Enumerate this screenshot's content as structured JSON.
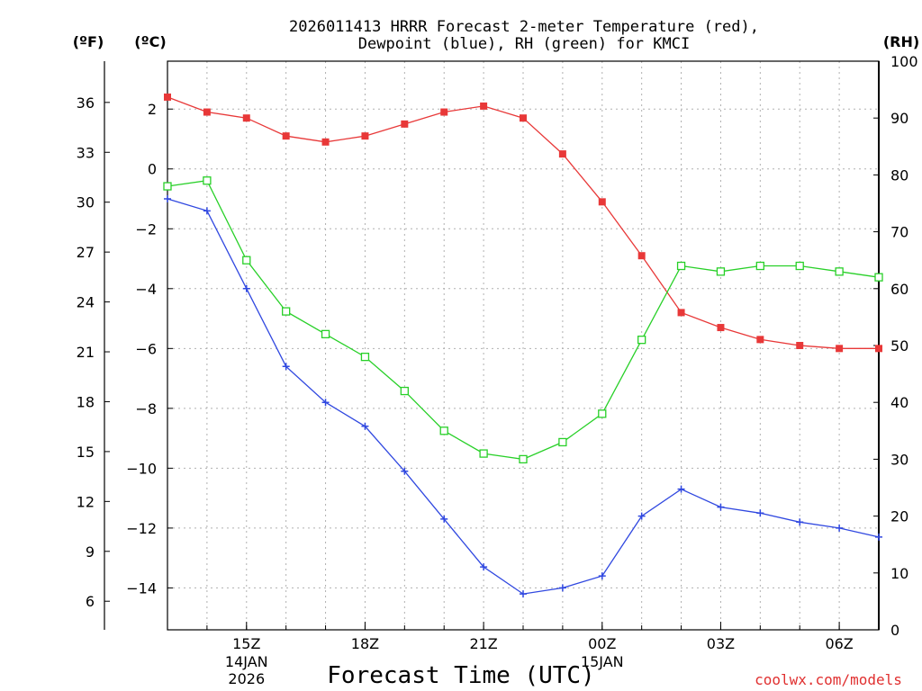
{
  "chart_data": {
    "type": "line",
    "title_line1": "2026011413 HRRR Forecast 2-meter Temperature (red),",
    "title_line2": "Dewpoint (blue), RH (green) for KMCI",
    "unit_f": "(ºF)",
    "unit_c": "(ºC)",
    "unit_rh": "(RH)",
    "xlabel": "Forecast Time (UTC)",
    "credit": "coolwx.com/models",
    "x_hours": [
      13,
      14,
      15,
      16,
      17,
      18,
      19,
      20,
      21,
      22,
      23,
      24,
      25,
      26,
      27,
      28,
      29,
      30,
      31
    ],
    "x_range": [
      13,
      31
    ],
    "x_ticks": [
      {
        "hour": 15,
        "label": "15Z",
        "date": "14JAN",
        "year": "2026"
      },
      {
        "hour": 18,
        "label": "18Z"
      },
      {
        "hour": 21,
        "label": "21Z"
      },
      {
        "hour": 24,
        "label": "00Z",
        "date": "15JAN"
      },
      {
        "hour": 27,
        "label": "03Z"
      },
      {
        "hour": 30,
        "label": "06Z"
      }
    ],
    "c_range": [
      -15.4,
      3.6
    ],
    "c_ticks": [
      2,
      0,
      -2,
      -4,
      -6,
      -8,
      -10,
      -12,
      -14
    ],
    "c_tick_labels": [
      "2",
      "0",
      "−2",
      "−4",
      "−6",
      "−8",
      "−10",
      "−12",
      "−14"
    ],
    "f_ticks": [
      36,
      33,
      30,
      27,
      24,
      21,
      18,
      15,
      12,
      9,
      6
    ],
    "rh_range": [
      0,
      100
    ],
    "rh_ticks": [
      100,
      90,
      80,
      70,
      60,
      50,
      40,
      30,
      20,
      10,
      0
    ],
    "series": [
      {
        "name": "Temperature",
        "unit": "C",
        "color": "#e83838",
        "marker": "filled-square",
        "values": [
          2.4,
          1.9,
          1.7,
          1.1,
          0.9,
          1.1,
          1.5,
          1.9,
          2.1,
          1.7,
          0.5,
          -1.1,
          -2.9,
          -4.8,
          -5.3,
          -5.7,
          -5.9,
          -6.0,
          -6.0
        ]
      },
      {
        "name": "Dewpoint",
        "unit": "C",
        "color": "#3048e0",
        "marker": "plus",
        "values": [
          -1.0,
          -1.4,
          -4.0,
          -6.6,
          -7.8,
          -8.6,
          -10.1,
          -11.7,
          -13.3,
          -14.2,
          -14.0,
          -13.6,
          -11.6,
          -10.7,
          -11.3,
          -11.5,
          -11.8,
          -12.0,
          -12.3
        ]
      },
      {
        "name": "RH",
        "unit": "%",
        "color": "#28d028",
        "marker": "open-square",
        "values": [
          78,
          79,
          65,
          56,
          52,
          48,
          42,
          35,
          31,
          30,
          33,
          38,
          51,
          64,
          63,
          64,
          64,
          63,
          62
        ]
      }
    ]
  }
}
